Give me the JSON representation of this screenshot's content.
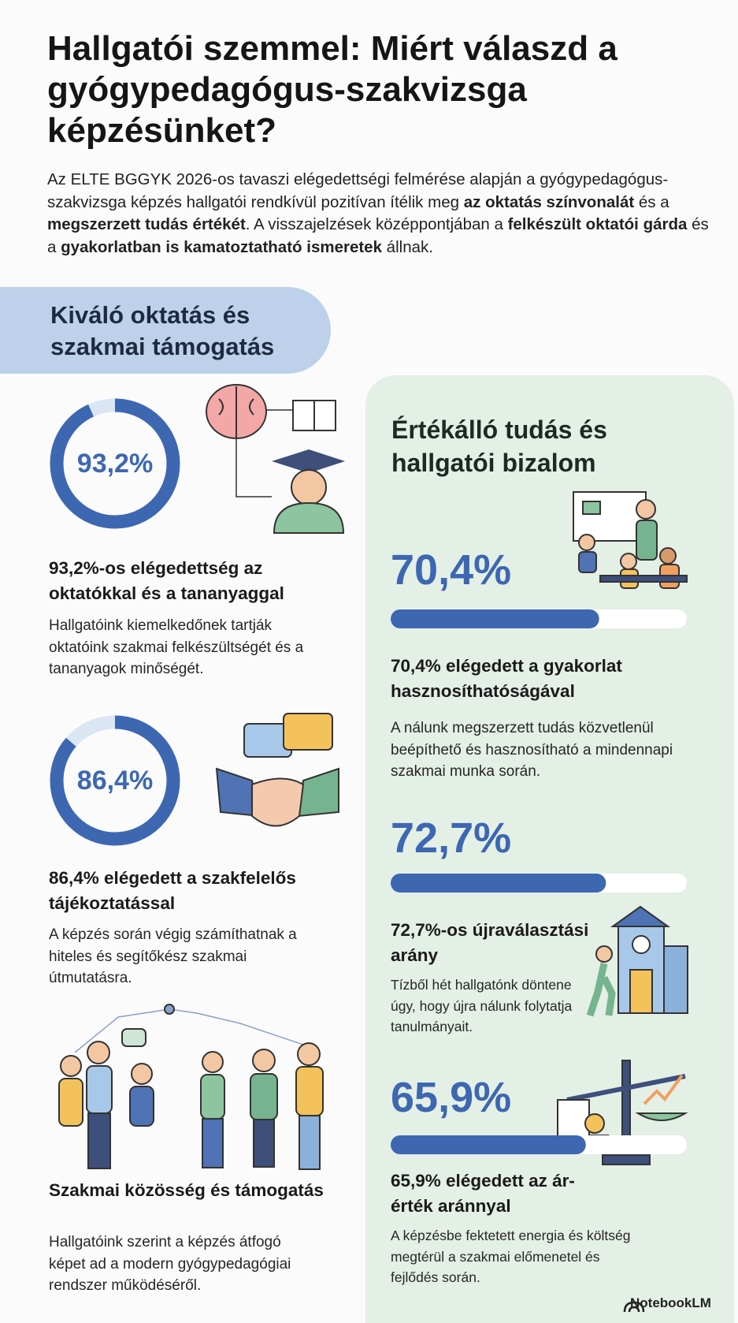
{
  "header": {
    "title": "Hallgatói szemmel: Miért válaszd a gyógypedagógus-szakvizsga képzésünket?",
    "intro": [
      {
        "text": "Az ELTE BGGYK 2026-os tavaszi elégedettségi felmérése alapján a gyógypedagógus-szakvizsga képzés hallgatói rendkívül pozitívan ítélik meg ",
        "bold": false
      },
      {
        "text": "az oktatás színvonalát",
        "bold": true
      },
      {
        "text": " és a ",
        "bold": false
      },
      {
        "text": "megszerzett tudás értékét",
        "bold": true
      },
      {
        "text": ". A visszajelzések középpontjában a ",
        "bold": false
      },
      {
        "text": "felkészült oktatói gárda",
        "bold": true
      },
      {
        "text": " és a ",
        "bold": false
      },
      {
        "text": "gyakorlatban is kamatoztatható ismeretek",
        "bold": true
      },
      {
        "text": " állnak.",
        "bold": false
      }
    ]
  },
  "scale": [
    0,
    100
  ],
  "left": {
    "title": "Kiváló oktatás és szakmai támogatás",
    "items": [
      {
        "value": 93.2,
        "value_label": "93,2%",
        "heading": "93,2%-os elégedettség az oktatókkal és a tananyaggal",
        "text": "Hallgatóink kiemelkedőnek tartják oktatóink szakmai felkészültségét és a tananyagok minőségét."
      },
      {
        "value": 86.4,
        "value_label": "86,4%",
        "heading": "86,4% elégedett a szakfelelős tájékoztatással",
        "text": "A képzés során végig számíthatnak a hiteles és segítőkész szakmai útmutatásra."
      },
      {
        "heading": "Szakmai közösség és támogatás",
        "text": "Hallgatóink szerint a képzés átfogó képet ad a modern gyógypedagógiai rendszer működéséről."
      }
    ]
  },
  "right": {
    "title": "Értékálló tudás és hallgatói bizalom",
    "items": [
      {
        "value": 70.4,
        "value_label": "70,4%",
        "heading": "70,4% elégedett a gyakorlat hasznosíthatóságával",
        "text": "A nálunk megszerzett tudás közvetlenül beépíthető és hasznosítható a mindennapi szakmai munka során."
      },
      {
        "value": 72.7,
        "value_label": "72,7%",
        "heading": "72,7%-os újraválasztási arány",
        "text": "Tízből hét hallgatónk döntene úgy, hogy újra nálunk folytatja tanulmányait."
      },
      {
        "value": 65.9,
        "value_label": "65,9%",
        "heading": "65,9% elégedett az ár-érték aránnyal",
        "text": "A képzésbe fektetett energia és költség megtérül a szakmai előmenetel és fejlődés során."
      }
    ]
  },
  "footer": {
    "brand": "NotebookLM"
  }
}
